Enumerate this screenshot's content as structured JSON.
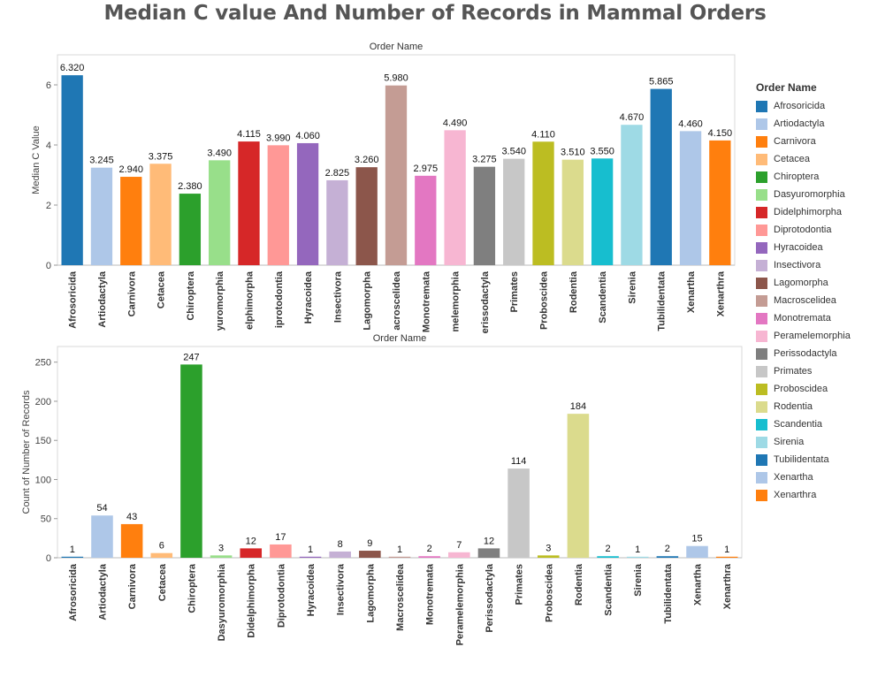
{
  "title": "Median C value And Number of Records in Mammal Orders",
  "legend": {
    "title": "Order Name",
    "items": [
      {
        "label": "Afrosoricida",
        "color": "#1f77b4"
      },
      {
        "label": "Artiodactyla",
        "color": "#aec7e8"
      },
      {
        "label": "Carnivora",
        "color": "#ff7f0e"
      },
      {
        "label": "Cetacea",
        "color": "#ffbb78"
      },
      {
        "label": "Chiroptera",
        "color": "#2ca02c"
      },
      {
        "label": "Dasyuromorphia",
        "color": "#98df8a"
      },
      {
        "label": "Didelphimorpha",
        "color": "#d62728"
      },
      {
        "label": "Diprotodontia",
        "color": "#ff9896"
      },
      {
        "label": "Hyracoidea",
        "color": "#9467bd"
      },
      {
        "label": "Insectivora",
        "color": "#c5b0d5"
      },
      {
        "label": "Lagomorpha",
        "color": "#8c564b"
      },
      {
        "label": "Macroscelidea",
        "color": "#c49c94"
      },
      {
        "label": "Monotremata",
        "color": "#e377c2"
      },
      {
        "label": "Peramelemorphia",
        "color": "#f7b6d2"
      },
      {
        "label": "Perissodactyla",
        "color": "#7f7f7f"
      },
      {
        "label": "Primates",
        "color": "#c7c7c7"
      },
      {
        "label": "Proboscidea",
        "color": "#bcbd22"
      },
      {
        "label": "Rodentia",
        "color": "#dbdb8d"
      },
      {
        "label": "Scandentia",
        "color": "#17becf"
      },
      {
        "label": "Sirenia",
        "color": "#9edae5"
      },
      {
        "label": "Tubilidentata",
        "color": "#1f77b4"
      },
      {
        "label": "Xenartha",
        "color": "#aec7e8"
      },
      {
        "label": "Xenarthra",
        "color": "#ff7f0e"
      }
    ]
  },
  "chart_data": [
    {
      "type": "bar",
      "header": "Order Name",
      "xlabel": "",
      "ylabel": "Median C Value",
      "ylim": [
        0,
        7
      ],
      "yticks": [
        "0",
        "2",
        "4",
        "6"
      ],
      "grid": false,
      "categories": [
        "Afrosoricida",
        "Artiodactyla",
        "Carnivora",
        "Cetacea",
        "Chiroptera",
        "Dasyuromorphia",
        "Didelphimorpha",
        "Diprotodontia",
        "Hyracoidea",
        "Insectivora",
        "Lagomorpha",
        "Macroscelidea",
        "Monotremata",
        "Peramelemorphia",
        "Perissodactyla",
        "Primates",
        "Proboscidea",
        "Rodentia",
        "Scandentia",
        "Sirenia",
        "Tubilidentata",
        "Xenartha",
        "Xenarthra"
      ],
      "values": [
        6.32,
        3.245,
        2.94,
        3.375,
        2.38,
        3.49,
        4.115,
        3.99,
        4.06,
        2.825,
        3.26,
        5.98,
        2.975,
        4.49,
        3.275,
        3.54,
        4.11,
        3.51,
        3.55,
        4.67,
        5.865,
        4.46,
        4.15
      ],
      "value_labels": [
        "6.320",
        "3.245",
        "2.940",
        "3.375",
        "2.380",
        "3.490",
        "4.115",
        "3.990",
        "4.060",
        "2.825",
        "3.260",
        "5.980",
        "2.975",
        "4.490",
        "3.275",
        "3.540",
        "4.110",
        "3.510",
        "3.550",
        "4.670",
        "5.865",
        "4.460",
        "4.150"
      ],
      "tick_labels": [
        "Afrosoricida",
        "Artiodactyla",
        "Carnivora",
        "Cetacea",
        "Chiroptera",
        "yuromorphia",
        "elphimorpha",
        "iprotodontia",
        "Hyracoidea",
        "Insectivora",
        "Lagomorpha",
        "acroscelidea",
        "Monotremata",
        "melemorphia",
        "erissodactyla",
        "Primates",
        "Proboscidea",
        "Rodentia",
        "Scandentia",
        "Sirenia",
        "Tubilidentata",
        "Xenartha",
        "Xenarthra"
      ]
    },
    {
      "type": "bar",
      "header": "Order Name",
      "xlabel": "",
      "ylabel": "Count of Number of Records",
      "ylim": [
        0,
        270
      ],
      "yticks": [
        "0",
        "50",
        "100",
        "150",
        "200",
        "250"
      ],
      "grid": false,
      "categories": [
        "Afrosoricida",
        "Artiodactyla",
        "Carnivora",
        "Cetacea",
        "Chiroptera",
        "Dasyuromorphia",
        "Didelphimorpha",
        "Diprotodontia",
        "Hyracoidea",
        "Insectivora",
        "Lagomorpha",
        "Macroscelidea",
        "Monotremata",
        "Peramelemorphia",
        "Perissodactyla",
        "Primates",
        "Proboscidea",
        "Rodentia",
        "Scandentia",
        "Sirenia",
        "Tubilidentata",
        "Xenartha",
        "Xenarthra"
      ],
      "values": [
        1,
        54,
        43,
        6,
        247,
        3,
        12,
        17,
        1,
        8,
        9,
        1,
        2,
        7,
        12,
        114,
        3,
        184,
        2,
        1,
        2,
        15,
        1
      ],
      "value_labels": [
        "1",
        "54",
        "43",
        "6",
        "247",
        "3",
        "12",
        "17",
        "1",
        "8",
        "9",
        "1",
        "2",
        "7",
        "12",
        "114",
        "3",
        "184",
        "2",
        "1",
        "2",
        "15",
        "1"
      ],
      "tick_labels": [
        "Afrosoricida",
        "Artiodactyla",
        "Carnivora",
        "Cetacea",
        "Chiroptera",
        "Dasyuromorphia",
        "Didelphimorpha",
        "Diprotodontia",
        "Hyracoidea",
        "Insectivora",
        "Lagomorpha",
        "Macroscelidea",
        "Monotremata",
        "Peramelemorphia",
        "Perissodactyla",
        "Primates",
        "Proboscidea",
        "Rodentia",
        "Scandentia",
        "Sirenia",
        "Tubilidentata",
        "Xenartha",
        "Xenarthra"
      ]
    }
  ]
}
